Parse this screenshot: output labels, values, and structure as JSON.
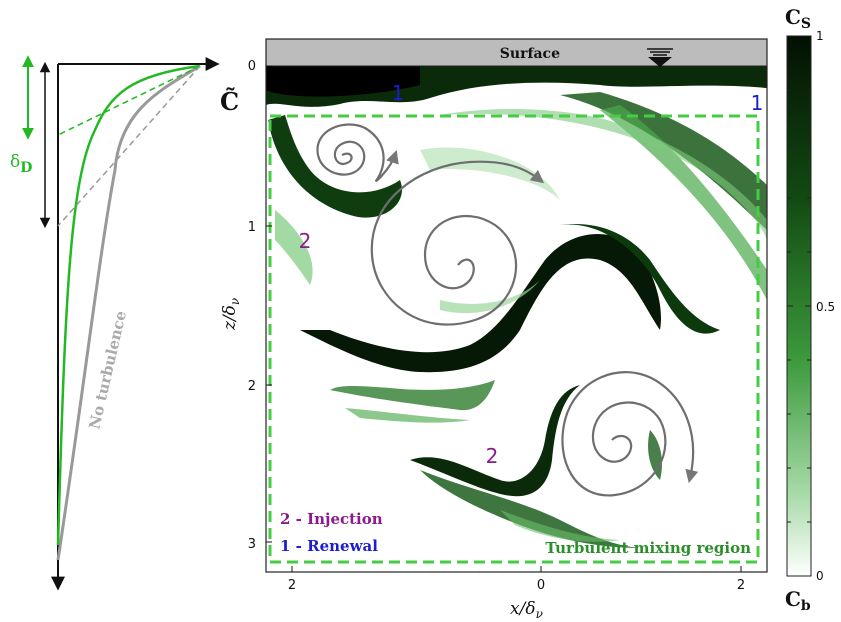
{
  "left_profile": {
    "concentration_label": "C̃",
    "delta_label": "δ",
    "delta_subscript": "D",
    "no_turbulence_label": "No turbulence"
  },
  "plot": {
    "surface_label": "Surface",
    "y_axis_label": "z/δ",
    "x_axis_label": "x/δ",
    "axis_subscript": "ν",
    "y_ticks": [
      "0",
      "1",
      "2",
      "3"
    ],
    "x_ticks": [
      "2",
      "0",
      "2"
    ],
    "renewal_marker": "1",
    "injection_marker": "2",
    "legend_injection": "2 - Injection",
    "legend_renewal": "1 - Renewal",
    "mixing_region_label": "Turbulent mixing region"
  },
  "colorbar": {
    "top_label": "C",
    "top_subscript": "S",
    "bottom_label": "C",
    "bottom_subscript": "b",
    "ticks": [
      "1",
      "0.5",
      "0"
    ]
  },
  "colors": {
    "green": "#22b922",
    "dark_green": "#0f3d0f",
    "grey": "#999999",
    "purple": "#8b1a8b",
    "blue": "#1c1cd0",
    "mixing_label_green": "#2a8f2a"
  }
}
